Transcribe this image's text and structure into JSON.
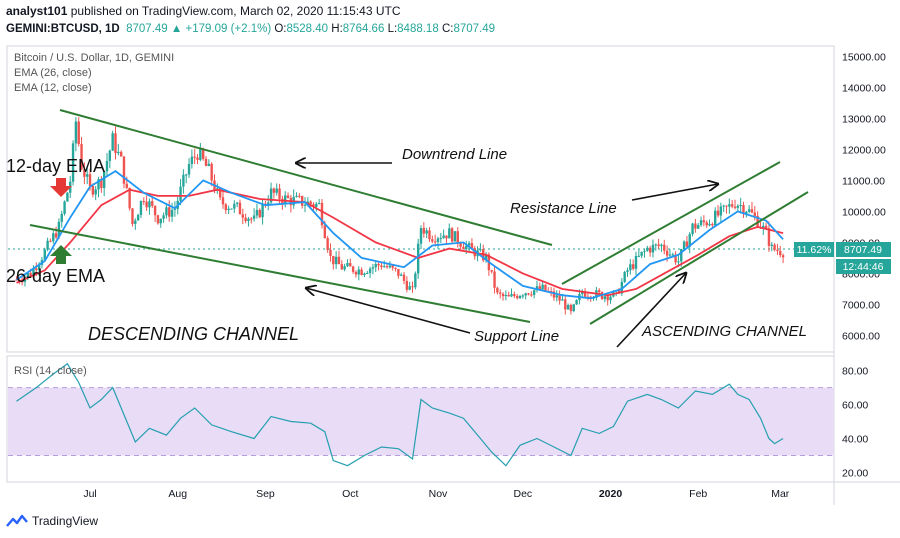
{
  "header": {
    "author": "analyst101",
    "published": "published on TradingView.com, March 02, 2020 11:15:43 UTC",
    "symbol": "GEMINI:BTCUSD, 1D",
    "last": "8707.49",
    "change": "▲ +179.09 (+2.1%)",
    "ohlc": [
      {
        "label": "O:",
        "value": "8528.40"
      },
      {
        "label": "H:",
        "value": "8764.66"
      },
      {
        "label": "L:",
        "value": "8488.18"
      },
      {
        "label": "C:",
        "value": "8707.49"
      }
    ]
  },
  "legend": {
    "title": "Bitcoin / U.S. Dollar, 1D, GEMINI",
    "ema26": "EMA (26, close)",
    "ema12": "EMA (12, close)",
    "rsi": "RSI (14, close)"
  },
  "annotations": {
    "downtrend": "Downtrend Line",
    "resistance": "Resistance Line",
    "support": "Support Line",
    "ema12": "12-day EMA",
    "ema26": "26-day EMA",
    "descending": "DESCENDING CHANNEL",
    "ascending": "ASCENDING CHANNEL"
  },
  "price_tags": {
    "percent": "11.62%",
    "price": "8707.49",
    "timer": "12:44:46"
  },
  "footer": {
    "brand": "TradingView"
  },
  "colors": {
    "up": "#26a69a",
    "down": "#ef5350",
    "ema12": "#2196f3",
    "ema26": "#f23645",
    "rsi": "#26a0b0",
    "trendline": "#2e7d32",
    "rsi_band": "#e9dcf7"
  },
  "chart_data": [
    {
      "type": "candlestick",
      "title": "Bitcoin / U.S. Dollar, 1D, GEMINI",
      "x_ticks": [
        "Jul",
        "Aug",
        "Sep",
        "Oct",
        "Nov",
        "Dec",
        "2020",
        "Feb",
        "Mar"
      ],
      "y_ticks": [
        "6000.00",
        "7000.00",
        "8000.00",
        "9000.00",
        "10000.00",
        "11000.00",
        "12000.00",
        "13000.00",
        "14000.00",
        "15000.00"
      ],
      "ylim": [
        5500,
        15300
      ],
      "xlim": [
        "2019-06-02",
        "2020-03-20"
      ],
      "series": [
        {
          "name": "BTCUSD close",
          "points": [
            [
              "2019-06-05",
              7800
            ],
            [
              "2019-06-10",
              8000
            ],
            [
              "2019-06-15",
              8700
            ],
            [
              "2019-06-20",
              9500
            ],
            [
              "2019-06-24",
              11000
            ],
            [
              "2019-06-26",
              12900
            ],
            [
              "2019-06-28",
              11500
            ],
            [
              "2019-07-01",
              10700
            ],
            [
              "2019-07-05",
              11000
            ],
            [
              "2019-07-09",
              12300
            ],
            [
              "2019-07-12",
              11600
            ],
            [
              "2019-07-16",
              9600
            ],
            [
              "2019-07-20",
              10500
            ],
            [
              "2019-07-25",
              9800
            ],
            [
              "2019-07-31",
              10100
            ],
            [
              "2019-08-05",
              11500
            ],
            [
              "2019-08-08",
              11900
            ],
            [
              "2019-08-12",
              11300
            ],
            [
              "2019-08-16",
              10300
            ],
            [
              "2019-08-22",
              10100
            ],
            [
              "2019-08-28",
              9700
            ],
            [
              "2019-09-03",
              10600
            ],
            [
              "2019-09-08",
              10400
            ],
            [
              "2019-09-14",
              10300
            ],
            [
              "2019-09-20",
              10200
            ],
            [
              "2019-09-24",
              8500
            ],
            [
              "2019-09-28",
              8200
            ],
            [
              "2019-10-05",
              8100
            ],
            [
              "2019-10-12",
              8300
            ],
            [
              "2019-10-18",
              8000
            ],
            [
              "2019-10-23",
              7400
            ],
            [
              "2019-10-26",
              9500
            ],
            [
              "2019-10-30",
              9200
            ],
            [
              "2019-11-05",
              9300
            ],
            [
              "2019-11-12",
              8800
            ],
            [
              "2019-11-18",
              8500
            ],
            [
              "2019-11-22",
              7300
            ],
            [
              "2019-11-26",
              7200
            ],
            [
              "2019-12-01",
              7400
            ],
            [
              "2019-12-08",
              7500
            ],
            [
              "2019-12-15",
              7100
            ],
            [
              "2019-12-18",
              6700
            ],
            [
              "2019-12-22",
              7400
            ],
            [
              "2019-12-29",
              7300
            ],
            [
              "2020-01-03",
              7300
            ],
            [
              "2020-01-07",
              8100
            ],
            [
              "2020-01-14",
              8800
            ],
            [
              "2020-01-19",
              8900
            ],
            [
              "2020-01-25",
              8400
            ],
            [
              "2020-01-30",
              9500
            ],
            [
              "2020-02-05",
              9700
            ],
            [
              "2020-02-10",
              10000
            ],
            [
              "2020-02-14",
              10300
            ],
            [
              "2020-02-18",
              10100
            ],
            [
              "2020-02-22",
              9700
            ],
            [
              "2020-02-25",
              9300
            ],
            [
              "2020-02-27",
              8800
            ],
            [
              "2020-03-02",
              8707
            ]
          ]
        },
        {
          "name": "EMA (12, close)",
          "points": [
            [
              "2019-06-05",
              7800
            ],
            [
              "2019-06-15",
              8400
            ],
            [
              "2019-06-24",
              9800
            ],
            [
              "2019-07-01",
              10800
            ],
            [
              "2019-07-10",
              11300
            ],
            [
              "2019-07-20",
              10600
            ],
            [
              "2019-07-31",
              10100
            ],
            [
              "2019-08-10",
              11000
            ],
            [
              "2019-08-20",
              10600
            ],
            [
              "2019-09-01",
              10200
            ],
            [
              "2019-09-15",
              10300
            ],
            [
              "2019-09-25",
              9300
            ],
            [
              "2019-10-05",
              8500
            ],
            [
              "2019-10-20",
              8200
            ],
            [
              "2019-10-30",
              8900
            ],
            [
              "2019-11-10",
              9000
            ],
            [
              "2019-11-20",
              8300
            ],
            [
              "2019-12-01",
              7600
            ],
            [
              "2019-12-15",
              7300
            ],
            [
              "2019-12-25",
              7200
            ],
            [
              "2020-01-05",
              7500
            ],
            [
              "2020-01-15",
              8300
            ],
            [
              "2020-01-25",
              8600
            ],
            [
              "2020-02-05",
              9400
            ],
            [
              "2020-02-15",
              10000
            ],
            [
              "2020-02-25",
              9700
            ],
            [
              "2020-03-02",
              9100
            ]
          ]
        },
        {
          "name": "EMA (26, close)",
          "points": [
            [
              "2019-06-05",
              7700
            ],
            [
              "2019-06-15",
              8100
            ],
            [
              "2019-06-24",
              9000
            ],
            [
              "2019-07-05",
              10200
            ],
            [
              "2019-07-15",
              10700
            ],
            [
              "2019-07-25",
              10500
            ],
            [
              "2019-08-05",
              10500
            ],
            [
              "2019-08-15",
              10700
            ],
            [
              "2019-08-30",
              10400
            ],
            [
              "2019-09-15",
              10300
            ],
            [
              "2019-09-25",
              9800
            ],
            [
              "2019-10-10",
              9000
            ],
            [
              "2019-10-25",
              8500
            ],
            [
              "2019-11-05",
              8800
            ],
            [
              "2019-11-18",
              8600
            ],
            [
              "2019-12-01",
              8000
            ],
            [
              "2019-12-15",
              7500
            ],
            [
              "2019-12-31",
              7300
            ],
            [
              "2020-01-10",
              7500
            ],
            [
              "2020-01-20",
              8000
            ],
            [
              "2020-02-01",
              8600
            ],
            [
              "2020-02-12",
              9200
            ],
            [
              "2020-02-22",
              9500
            ],
            [
              "2020-03-02",
              9300
            ]
          ]
        }
      ]
    },
    {
      "type": "line",
      "title": "RSI (14, close)",
      "y_ticks": [
        "20.00",
        "40.00",
        "60.00",
        "80.00"
      ],
      "ylim": [
        15,
        88
      ],
      "band": [
        30,
        70
      ],
      "series": [
        {
          "name": "RSI (14, close)",
          "points": [
            [
              "2019-06-05",
              62
            ],
            [
              "2019-06-12",
              70
            ],
            [
              "2019-06-18",
              78
            ],
            [
              "2019-06-23",
              84
            ],
            [
              "2019-06-27",
              73
            ],
            [
              "2019-07-01",
              58
            ],
            [
              "2019-07-05",
              63
            ],
            [
              "2019-07-09",
              70
            ],
            [
              "2019-07-14",
              50
            ],
            [
              "2019-07-17",
              38
            ],
            [
              "2019-07-22",
              46
            ],
            [
              "2019-07-28",
              42
            ],
            [
              "2019-08-02",
              52
            ],
            [
              "2019-08-07",
              58
            ],
            [
              "2019-08-13",
              48
            ],
            [
              "2019-08-20",
              44
            ],
            [
              "2019-08-28",
              40
            ],
            [
              "2019-09-03",
              53
            ],
            [
              "2019-09-10",
              50
            ],
            [
              "2019-09-17",
              49
            ],
            [
              "2019-09-22",
              44
            ],
            [
              "2019-09-25",
              27
            ],
            [
              "2019-09-30",
              24
            ],
            [
              "2019-10-06",
              30
            ],
            [
              "2019-10-12",
              35
            ],
            [
              "2019-10-18",
              34
            ],
            [
              "2019-10-23",
              28
            ],
            [
              "2019-10-26",
              63
            ],
            [
              "2019-10-30",
              58
            ],
            [
              "2019-11-05",
              55
            ],
            [
              "2019-11-10",
              52
            ],
            [
              "2019-11-15",
              42
            ],
            [
              "2019-11-20",
              32
            ],
            [
              "2019-11-25",
              24
            ],
            [
              "2019-11-30",
              36
            ],
            [
              "2019-12-06",
              40
            ],
            [
              "2019-12-12",
              35
            ],
            [
              "2019-12-18",
              30
            ],
            [
              "2019-12-22",
              46
            ],
            [
              "2019-12-28",
              43
            ],
            [
              "2020-01-02",
              47
            ],
            [
              "2020-01-07",
              62
            ],
            [
              "2020-01-14",
              66
            ],
            [
              "2020-01-19",
              63
            ],
            [
              "2020-01-25",
              58
            ],
            [
              "2020-01-31",
              68
            ],
            [
              "2020-02-06",
              66
            ],
            [
              "2020-02-12",
              72
            ],
            [
              "2020-02-15",
              66
            ],
            [
              "2020-02-19",
              63
            ],
            [
              "2020-02-23",
              52
            ],
            [
              "2020-02-26",
              40
            ],
            [
              "2020-02-28",
              37
            ],
            [
              "2020-03-02",
              40
            ]
          ]
        }
      ]
    }
  ]
}
